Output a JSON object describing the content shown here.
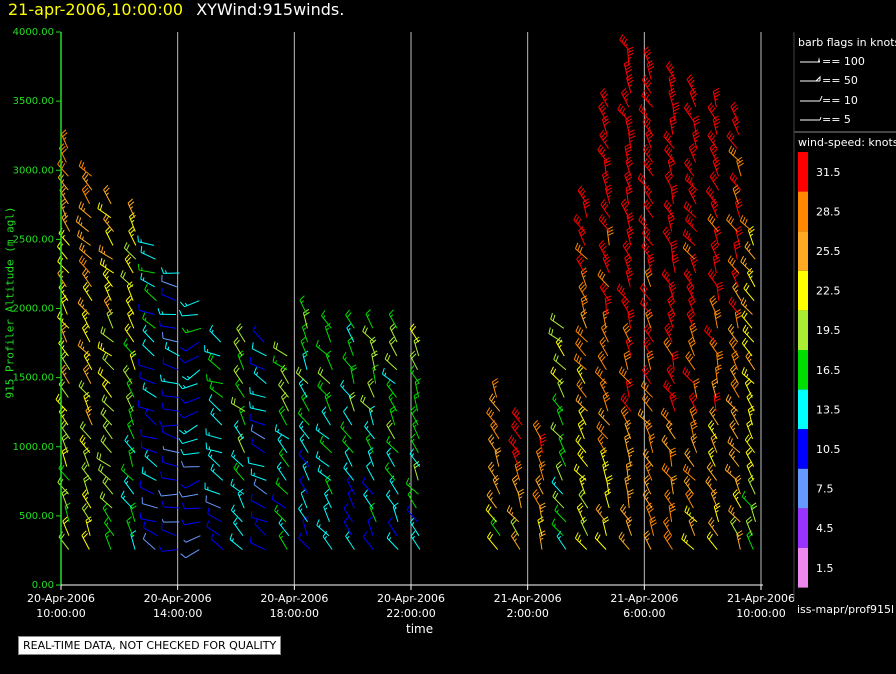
{
  "title": {
    "date": "21-apr-2006,10:00:00",
    "name": "XYWind:915winds."
  },
  "qc_note": "REAL-TIME DATA, NOT CHECKED FOR QUALITY",
  "source_label": "iss-mapr/prof915l",
  "colors": {
    "background": "#000000",
    "axis": "#22dd22",
    "gridline": "#bbbbbb"
  },
  "barb_legend": {
    "title": "barb flags in knots",
    "items": [
      {
        "label": "== 100"
      },
      {
        "label": "== 50"
      },
      {
        "label": "== 10"
      },
      {
        "label": "== 5"
      }
    ]
  },
  "speed_legend": {
    "title": "wind-speed: knots",
    "items": [
      {
        "label": "31.5",
        "color": "#ff0000"
      },
      {
        "label": "28.5",
        "color": "#ff8800"
      },
      {
        "label": "25.5",
        "color": "#ffaa22"
      },
      {
        "label": "22.5",
        "color": "#ffff00"
      },
      {
        "label": "19.5",
        "color": "#aaee33"
      },
      {
        "label": "16.5",
        "color": "#00dd00"
      },
      {
        "label": "13.5",
        "color": "#00ffff"
      },
      {
        "label": "10.5",
        "color": "#0000ff"
      },
      {
        "label": "7.5",
        "color": "#6699ff"
      },
      {
        "label": "4.5",
        "color": "#9933ff"
      },
      {
        "label": "1.5",
        "color": "#ee88ee"
      }
    ]
  },
  "chart_data": {
    "type": "scatter",
    "subtype": "wind-barbs",
    "title": "21-apr-2006,10:00:00  XYWind:915winds.",
    "xlabel": "time",
    "ylabel": "915 Profiler Altitude (m agl)",
    "xlim": [
      "20-Apr-2006 10:00:00",
      "21-Apr-2006 10:00:00"
    ],
    "ylim": [
      0,
      4000
    ],
    "x_ticks": [
      {
        "date": "20-Apr-2006",
        "time": "10:00:00",
        "hour": 0
      },
      {
        "date": "20-Apr-2006",
        "time": "14:00:00",
        "hour": 4
      },
      {
        "date": "20-Apr-2006",
        "time": "18:00:00",
        "hour": 8
      },
      {
        "date": "20-Apr-2006",
        "time": "22:00:00",
        "hour": 12
      },
      {
        "date": "21-Apr-2006",
        "time": "2:00:00",
        "hour": 16
      },
      {
        "date": "21-Apr-2006",
        "time": "6:00:00",
        "hour": 20
      },
      {
        "date": "21-Apr-2006",
        "time": "10:00:00",
        "hour": 24
      }
    ],
    "y_ticks": [
      "0.00",
      "500.00",
      "1000.00",
      "1500.00",
      "2000.00",
      "2500.00",
      "3000.00",
      "3500.00",
      "4000.00"
    ],
    "grid": "vertical-at-x-ticks",
    "legend": "right",
    "hourly_profiles": [
      {
        "hour": 0.25,
        "top": 3200,
        "speed": 24,
        "dir": 330
      },
      {
        "hour": 1.0,
        "top": 3050,
        "speed": 26,
        "dir": 325
      },
      {
        "hour": 1.75,
        "top": 2850,
        "speed": 22,
        "dir": 320
      },
      {
        "hour": 2.5,
        "top": 2700,
        "speed": 20,
        "dir": 330
      },
      {
        "hour": 3.25,
        "top": 2500,
        "speed": 14,
        "dir": 300
      },
      {
        "hour": 4.0,
        "top": 2300,
        "speed": 11,
        "dir": 280
      },
      {
        "hour": 4.75,
        "top": 2100,
        "speed": 12,
        "dir": 250
      },
      {
        "hour": 5.5,
        "top": 1800,
        "speed": 14,
        "dir": 300
      },
      {
        "hour": 6.25,
        "top": 1850,
        "speed": 18,
        "dir": 320
      },
      {
        "hour": 7.0,
        "top": 1800,
        "speed": 12,
        "dir": 300
      },
      {
        "hour": 7.75,
        "top": 1750,
        "speed": 17,
        "dir": 320
      },
      {
        "hour": 8.5,
        "top": 2050,
        "speed": 16,
        "dir": 330
      },
      {
        "hour": 9.25,
        "top": 1950,
        "speed": 17,
        "dir": 325
      },
      {
        "hour": 10.0,
        "top": 1950,
        "speed": 16,
        "dir": 330
      },
      {
        "hour": 10.75,
        "top": 1900,
        "speed": 17,
        "dir": 330
      },
      {
        "hour": 11.5,
        "top": 1900,
        "speed": 17,
        "dir": 325
      },
      {
        "hour": 12.25,
        "top": 1850,
        "speed": 18,
        "dir": 330
      },
      {
        "hour": 15.0,
        "top": 1450,
        "speed": 26,
        "dir": 330
      },
      {
        "hour": 15.75,
        "top": 1200,
        "speed": 30,
        "dir": 330
      },
      {
        "hour": 16.5,
        "top": 1150,
        "speed": 30,
        "dir": 335
      },
      {
        "hour": 17.25,
        "top": 1900,
        "speed": 20,
        "dir": 320
      },
      {
        "hour": 18.0,
        "top": 2800,
        "speed": 28,
        "dir": 330
      },
      {
        "hour": 18.75,
        "top": 3500,
        "speed": 32,
        "dir": 335
      },
      {
        "hour": 19.5,
        "top": 3900,
        "speed": 34,
        "dir": 335
      },
      {
        "hour": 20.25,
        "top": 3850,
        "speed": 34,
        "dir": 330
      },
      {
        "hour": 21.0,
        "top": 3750,
        "speed": 34,
        "dir": 335
      },
      {
        "hour": 21.75,
        "top": 3650,
        "speed": 33,
        "dir": 330
      },
      {
        "hour": 22.5,
        "top": 3550,
        "speed": 32,
        "dir": 335
      },
      {
        "hour": 23.25,
        "top": 3400,
        "speed": 30,
        "dir": 330
      },
      {
        "hour": 23.75,
        "top": 2600,
        "speed": 24,
        "dir": 330
      }
    ],
    "gate_spacing_m": 100,
    "bottom_gate_m": 300
  }
}
